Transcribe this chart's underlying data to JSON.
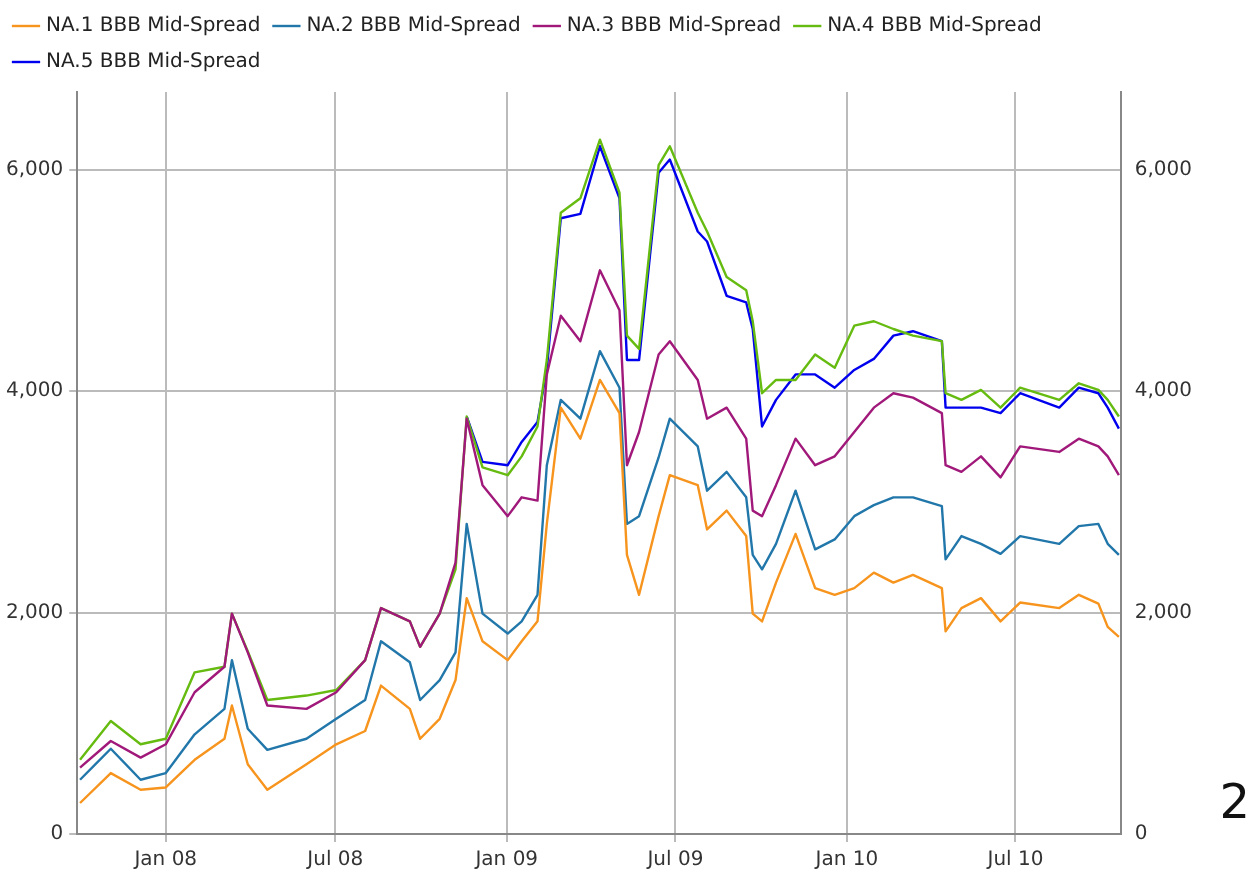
{
  "chart_data": {
    "type": "line",
    "x": [
      "2007-10-01",
      "2007-11-03",
      "2007-12-05",
      "2008-01-01",
      "2008-02-01",
      "2008-03-04",
      "2008-03-12",
      "2008-03-29",
      "2008-04-19",
      "2008-05-31",
      "2008-07-02",
      "2008-08-02",
      "2008-08-19",
      "2008-09-19",
      "2008-09-30",
      "2008-10-21",
      "2008-11-07",
      "2008-11-19",
      "2008-12-06",
      "2009-01-02",
      "2009-01-17",
      "2009-02-03",
      "2009-02-13",
      "2009-02-28",
      "2009-03-21",
      "2009-04-11",
      "2009-05-02",
      "2009-05-10",
      "2009-05-23",
      "2009-06-13",
      "2009-06-25",
      "2009-07-25",
      "2009-08-04",
      "2009-08-25",
      "2009-09-15",
      "2009-09-22",
      "2009-10-02",
      "2009-10-17",
      "2009-11-07",
      "2009-11-28",
      "2009-12-19",
      "2010-01-09",
      "2010-01-30",
      "2010-02-20",
      "2010-03-13",
      "2010-04-13",
      "2010-04-17",
      "2010-05-04",
      "2010-05-25",
      "2010-06-15",
      "2010-07-06",
      "2010-08-17",
      "2010-09-07",
      "2010-09-28",
      "2010-10-08",
      "2010-10-20"
    ],
    "series": [
      {
        "name": "NA.1 BBB Mid-Spread",
        "color": "#f7941d",
        "values": [
          280,
          550,
          400,
          420,
          670,
          860,
          1160,
          630,
          400,
          630,
          810,
          930,
          1340,
          1130,
          860,
          1040,
          1390,
          2130,
          1740,
          1570,
          1740,
          1920,
          2800,
          3850,
          3570,
          4100,
          3800,
          2520,
          2160,
          2870,
          3240,
          3150,
          2750,
          2920,
          2690,
          1990,
          1920,
          2270,
          2710,
          2220,
          2160,
          2220,
          2360,
          2270,
          2340,
          2220,
          1830,
          2040,
          2130,
          1920,
          2090,
          2040,
          2160,
          2080,
          1870,
          1780
        ]
      },
      {
        "name": "NA.2 BBB Mid-Spread",
        "color": "#2277aa",
        "values": [
          490,
          770,
          490,
          550,
          900,
          1130,
          1570,
          950,
          760,
          860,
          1040,
          1210,
          1740,
          1550,
          1210,
          1390,
          1640,
          2800,
          1990,
          1810,
          1920,
          2160,
          3330,
          3920,
          3750,
          4360,
          4030,
          2800,
          2870,
          3400,
          3750,
          3500,
          3100,
          3270,
          3040,
          2520,
          2390,
          2620,
          3100,
          2570,
          2660,
          2870,
          2970,
          3040,
          3040,
          2960,
          2480,
          2690,
          2620,
          2530,
          2690,
          2620,
          2780,
          2800,
          2620,
          2520
        ]
      },
      {
        "name": "NA.3 BBB Mid-Spread",
        "color": "#a0197a",
        "values": [
          600,
          840,
          690,
          810,
          1280,
          1510,
          1990,
          1640,
          1160,
          1130,
          1280,
          1570,
          2040,
          1920,
          1690,
          1990,
          2450,
          3750,
          3150,
          2870,
          3040,
          3010,
          4150,
          4680,
          4450,
          5090,
          4730,
          3330,
          3630,
          4330,
          4450,
          4100,
          3750,
          3850,
          3570,
          2920,
          2870,
          3150,
          3570,
          3330,
          3410,
          3630,
          3850,
          3980,
          3940,
          3800,
          3330,
          3270,
          3410,
          3220,
          3500,
          3450,
          3570,
          3500,
          3410,
          3240
        ]
      },
      {
        "name": "NA.4 BBB Mid-Spread",
        "color": "#66bb11",
        "values": [
          670,
          1020,
          810,
          860,
          1460,
          1510,
          1990,
          1650,
          1210,
          1250,
          1300,
          1570,
          2040,
          1920,
          1690,
          1990,
          2390,
          3770,
          3310,
          3240,
          3410,
          3680,
          4280,
          5610,
          5740,
          6270,
          5790,
          4500,
          4380,
          6040,
          6210,
          5610,
          5440,
          5030,
          4910,
          4630,
          3980,
          4100,
          4100,
          4330,
          4210,
          4590,
          4630,
          4560,
          4500,
          4450,
          3980,
          3920,
          4010,
          3850,
          4030,
          3920,
          4070,
          4010,
          3920,
          3770
        ]
      },
      {
        "name": "NA.5 BBB Mid-Spread",
        "color": "#0000ee",
        "values": [
          null,
          null,
          null,
          null,
          null,
          null,
          null,
          null,
          null,
          null,
          null,
          null,
          null,
          null,
          null,
          null,
          null,
          3770,
          3360,
          3330,
          3540,
          3720,
          4200,
          5560,
          5600,
          6210,
          5740,
          4280,
          4280,
          5970,
          6090,
          5440,
          5350,
          4860,
          4800,
          4560,
          3680,
          3920,
          4150,
          4150,
          4030,
          4190,
          4290,
          4500,
          4540,
          4450,
          3850,
          3850,
          3850,
          3800,
          3980,
          3850,
          4030,
          3980,
          3850,
          3660
        ]
      }
    ],
    "xlim": [
      "2007-09-28",
      "2010-10-22"
    ],
    "xticks": [
      {
        "value": "2008-01-01",
        "label": "Jan 08"
      },
      {
        "value": "2008-07-01",
        "label": "Jul 08"
      },
      {
        "value": "2009-01-01",
        "label": "Jan 09"
      },
      {
        "value": "2009-07-01",
        "label": "Jul 09"
      },
      {
        "value": "2010-01-01",
        "label": "Jan 10"
      },
      {
        "value": "2010-07-01",
        "label": "Jul 10"
      }
    ],
    "ylim": [
      0,
      6700
    ],
    "yticks": [
      0,
      {
        "value": 2000,
        "label": "2,000"
      },
      {
        "value": 4000,
        "label": "4,000"
      },
      {
        "value": 6000,
        "label": "6,000"
      }
    ],
    "y2lim": [
      0,
      6700
    ],
    "y2ticks": [
      0,
      {
        "value": 2000,
        "label": "2,000"
      },
      {
        "value": 4000,
        "label": "4,000"
      },
      {
        "value": 6000,
        "label": "6,000"
      }
    ],
    "grid": true,
    "legend": "top left",
    "marker": "none",
    "line_style": "solid",
    "annotations": [
      "2"
    ]
  }
}
